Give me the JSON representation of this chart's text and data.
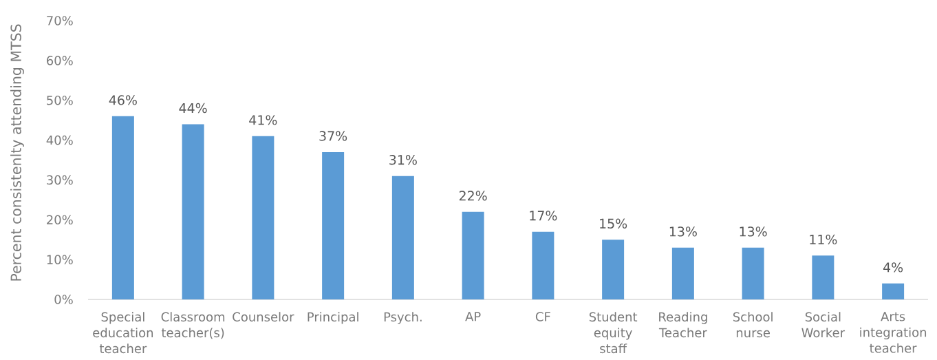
{
  "chart_data": {
    "type": "bar",
    "ylabel": "Percent consistenlty attending MTSS",
    "categories": [
      "Special education teacher",
      "Classroom teacher(s)",
      "Counselor",
      "Principal",
      "Psych.",
      "AP",
      "CF",
      "Student equity staff",
      "Reading Teacher",
      "School nurse",
      "Social Worker",
      "Arts integration teacher"
    ],
    "values": [
      46,
      44,
      41,
      37,
      31,
      22,
      17,
      15,
      13,
      13,
      11,
      4
    ],
    "value_labels": [
      "46%",
      "44%",
      "41%",
      "37%",
      "31%",
      "22%",
      "17%",
      "15%",
      "13%",
      "13%",
      "11%",
      "4%"
    ],
    "color": "#5b9bd5",
    "ylim": [
      0,
      70
    ],
    "yticks": [
      {
        "value": 0,
        "label": "0%"
      },
      {
        "value": 10,
        "label": "10%"
      },
      {
        "value": 20,
        "label": "20%"
      },
      {
        "value": 30,
        "label": "30%"
      },
      {
        "value": 40,
        "label": "40%"
      },
      {
        "value": 50,
        "label": "50%"
      },
      {
        "value": 60,
        "label": "60%"
      },
      {
        "value": 70,
        "label": "70%"
      }
    ]
  }
}
